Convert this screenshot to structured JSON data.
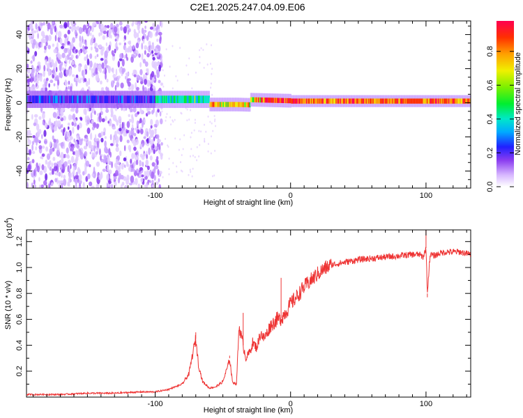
{
  "title": "C2E1.2025.247.04.09.E06",
  "chart_data": [
    {
      "type": "heatmap",
      "xlabel": "Height of straight line (km)",
      "ylabel": "Frequency (Hz)",
      "xlim": [
        -195,
        133
      ],
      "ylim": [
        -50,
        48
      ],
      "xticks": [
        -100,
        0,
        100
      ],
      "yticks": [
        -40,
        -20,
        0,
        20,
        40
      ],
      "colorbar": {
        "label": "Normalized spectral amplitude",
        "range": [
          0,
          0.98
        ],
        "ticks": [
          0.0,
          0.2,
          0.4,
          0.6,
          0.8
        ]
      }
    },
    {
      "type": "line",
      "xlabel": "Height of straight line (km)",
      "ylabel": "SNR (10 * v/v)",
      "scale_label": "(x10",
      "scale_exponent": "4",
      "xlim": [
        -195,
        133
      ],
      "ylim": [
        0,
        1.29
      ],
      "xticks": [
        -100,
        0,
        100
      ],
      "yticks": [
        0.2,
        0.4,
        0.6,
        0.8,
        1.0,
        1.2
      ],
      "line_color": "#ee3333",
      "series": [
        {
          "name": "SNR",
          "x": [
            -195,
            -170,
            -150,
            -130,
            -110,
            -100,
            -90,
            -85,
            -80,
            -75,
            -72,
            -70,
            -68,
            -65,
            -60,
            -55,
            -50,
            -46,
            -45,
            -43,
            -40,
            -38,
            -35,
            -33,
            -30,
            -28,
            -25,
            -22,
            -20,
            -17,
            -15,
            -12,
            -10,
            -8,
            -6,
            -4,
            -2,
            0,
            5,
            10,
            15,
            20,
            25,
            30,
            35,
            40,
            45,
            50,
            60,
            70,
            80,
            90,
            95,
            98,
            100,
            101,
            103,
            106,
            110,
            115,
            120,
            125,
            133
          ],
          "y": [
            0.02,
            0.02,
            0.03,
            0.03,
            0.04,
            0.04,
            0.06,
            0.08,
            0.1,
            0.18,
            0.35,
            0.45,
            0.25,
            0.12,
            0.07,
            0.08,
            0.12,
            0.25,
            0.3,
            0.12,
            0.1,
            0.55,
            0.4,
            0.3,
            0.35,
            0.42,
            0.38,
            0.5,
            0.45,
            0.5,
            0.55,
            0.58,
            0.6,
            0.6,
            0.62,
            0.65,
            0.68,
            0.72,
            0.78,
            0.85,
            0.9,
            0.95,
            0.99,
            1.02,
            1.03,
            1.04,
            1.05,
            1.06,
            1.07,
            1.08,
            1.09,
            1.1,
            1.1,
            1.08,
            1.15,
            0.8,
            1.1,
            1.09,
            1.11,
            1.12,
            1.12,
            1.12,
            1.1
          ]
        }
      ],
      "annotations": [
        {
          "x": -70,
          "y": 0.5,
          "note": "spike"
        },
        {
          "x": -45,
          "y": 0.32,
          "note": "spike"
        },
        {
          "x": -35,
          "y": 0.65,
          "note": "spike"
        },
        {
          "x": -7,
          "y": 0.92,
          "note": "spike"
        },
        {
          "x": 100,
          "y": 1.29,
          "note": "spike"
        },
        {
          "x": 101,
          "y": 0.77,
          "note": "dip"
        }
      ]
    }
  ]
}
